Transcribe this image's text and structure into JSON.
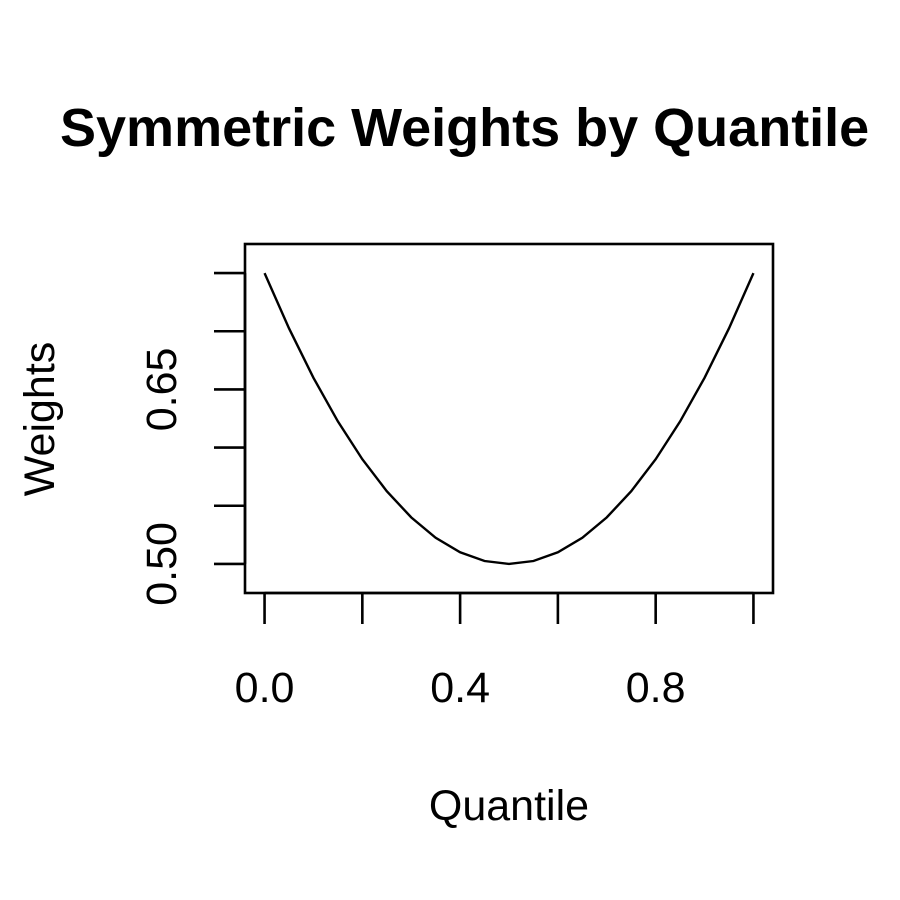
{
  "chart_data": {
    "type": "line",
    "title": "Symmetric Weights by Quantile",
    "xlabel": "Quantile",
    "ylabel": "Weights",
    "xlim": [
      -0.04,
      1.04
    ],
    "ylim": [
      0.475,
      0.775
    ],
    "x_ticks": [
      0.0,
      0.2,
      0.4,
      0.6,
      0.8,
      1.0
    ],
    "x_tick_labels": [
      "0.0",
      "",
      "0.4",
      "",
      "0.8",
      ""
    ],
    "y_ticks": [
      0.5,
      0.55,
      0.6,
      0.65,
      0.7,
      0.75
    ],
    "y_tick_labels": [
      "0.50",
      "",
      "",
      "0.65",
      "",
      ""
    ],
    "grid": false,
    "series": [
      {
        "x": [
          0.0,
          0.05,
          0.1,
          0.15,
          0.2,
          0.25,
          0.3,
          0.35,
          0.4,
          0.45,
          0.5,
          0.55,
          0.6,
          0.65,
          0.7,
          0.75,
          0.8,
          0.85,
          0.9,
          0.95,
          1.0
        ],
        "y": [
          0.75,
          0.7025,
          0.66,
          0.6225,
          0.59,
          0.5625,
          0.54,
          0.5225,
          0.51,
          0.5025,
          0.5,
          0.5025,
          0.51,
          0.5225,
          0.54,
          0.5625,
          0.59,
          0.6225,
          0.66,
          0.7025,
          0.75
        ],
        "color": "#000000"
      }
    ]
  }
}
